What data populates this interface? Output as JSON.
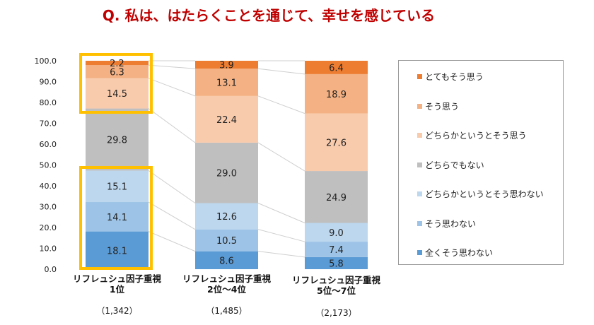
{
  "title": "Q.  私は、はたらくことを通じて、幸せを感じている",
  "chart_data": {
    "type": "bar",
    "stacked": true,
    "categories": [
      {
        "line1": "リフレュシュ因子重視",
        "line2": "1位",
        "n": "（1,342）"
      },
      {
        "line1": "リフレュシュ因子重視",
        "line2": "2位～4位",
        "n": "（1,485）"
      },
      {
        "line1": "リフレュシュ因子重視",
        "line2": "5位～7位",
        "n": "（2,173）"
      }
    ],
    "series": [
      {
        "name": "全くそう思わない",
        "color": "#5B9BD5",
        "values": [
          18.1,
          8.6,
          5.8
        ]
      },
      {
        "name": "そう思わない",
        "color": "#9DC3E6",
        "values": [
          14.1,
          10.5,
          7.4
        ]
      },
      {
        "name": "どちらかというとそう思わない",
        "color": "#BDD7EE",
        "values": [
          15.1,
          12.6,
          9.0
        ]
      },
      {
        "name": "どちらでもない",
        "color": "#BFBFBF",
        "values": [
          29.8,
          29.0,
          24.9
        ]
      },
      {
        "name": "どちらかというとそう思う",
        "color": "#F8CBAD",
        "values": [
          14.5,
          22.4,
          27.6
        ]
      },
      {
        "name": "そう思う",
        "color": "#F4B183",
        "values": [
          6.3,
          13.1,
          18.9
        ]
      },
      {
        "name": "とてもそう思う",
        "color": "#ED7D31",
        "values": [
          2.2,
          3.9,
          6.4
        ]
      }
    ],
    "yticks": [
      "0.0",
      "10.0",
      "20.0",
      "30.0",
      "40.0",
      "50.0",
      "60.0",
      "70.0",
      "80.0",
      "90.0",
      "100.0"
    ],
    "ylim": [
      0,
      100
    ],
    "grid": false,
    "legend": "right",
    "highlight_color": "#FFC000",
    "highlights": [
      {
        "category": 0,
        "series": [
          "どちらかというとそう思う",
          "そう思う",
          "とてもそう思う"
        ]
      },
      {
        "category": 0,
        "series": [
          "全くそう思わない",
          "そう思わない",
          "どちらかというとそう思わない"
        ]
      }
    ]
  }
}
